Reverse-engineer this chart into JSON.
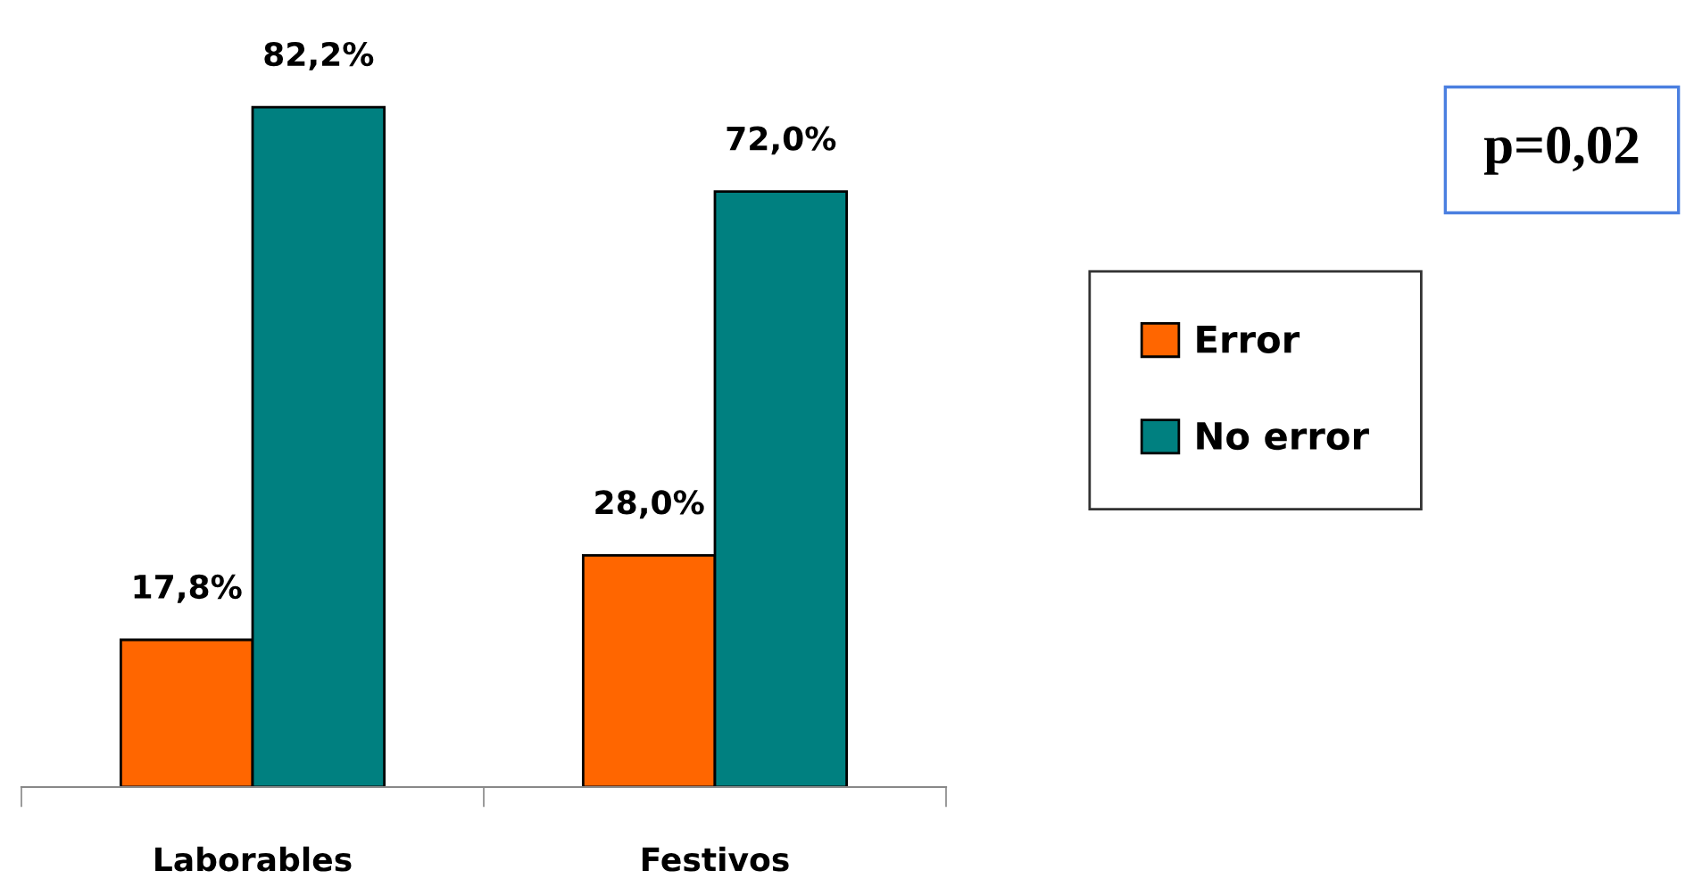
{
  "chart_data": {
    "type": "bar",
    "categories": [
      "Laborables",
      "Festivos"
    ],
    "series": [
      {
        "name": "Error",
        "color": "#ff6600",
        "values": [
          17.8,
          28.0
        ],
        "value_labels": [
          "17,8%",
          "28,0%"
        ]
      },
      {
        "name": "No error",
        "color": "#008080",
        "values": [
          82.2,
          72.0
        ],
        "value_labels": [
          "82,2%",
          "72,0%"
        ]
      }
    ],
    "legend": "right",
    "grid": false,
    "annotations": [
      "p=0,02"
    ]
  }
}
